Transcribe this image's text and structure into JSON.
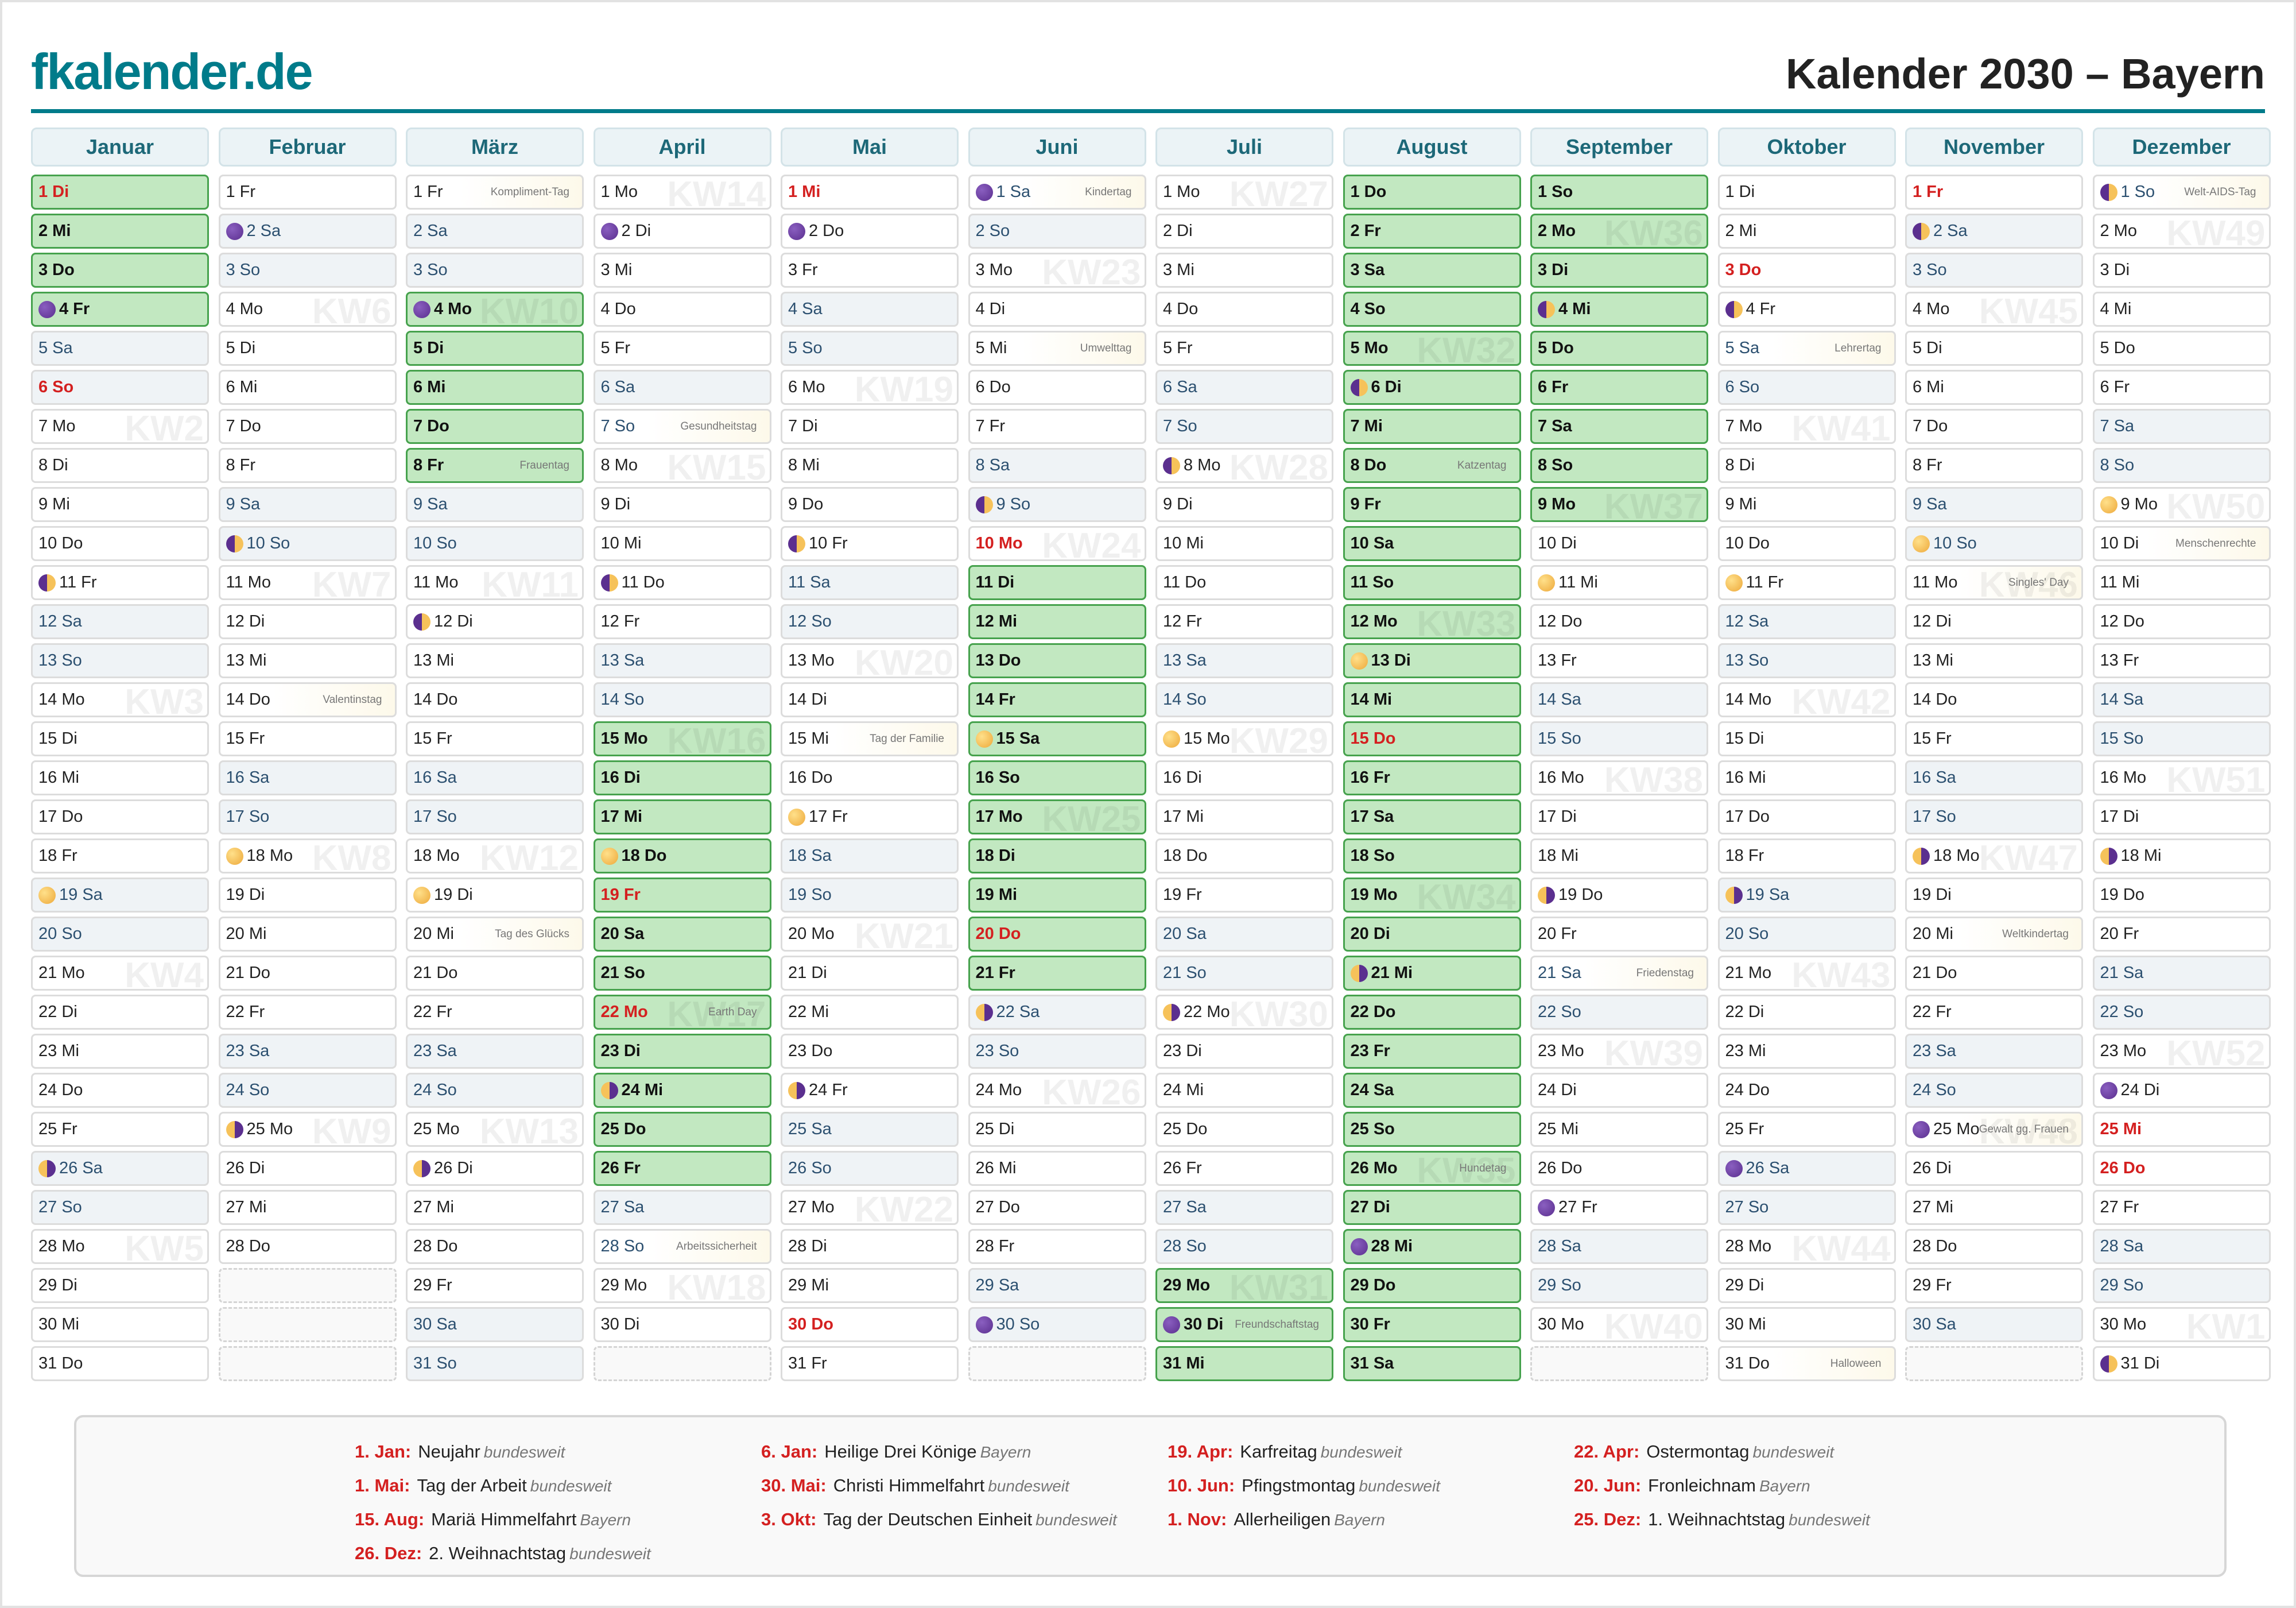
{
  "header": {
    "logo": "fkalender.de",
    "title": "Kalender 2030 – Bayern"
  },
  "colors": {
    "brand": "#007b8a",
    "holiday": "#d42020",
    "vacation": "#c2e8c1",
    "weekend": "#eff3f6"
  },
  "months": [
    {
      "name": "Januar",
      "start": 2,
      "len": 31,
      "holidays": [
        1,
        6
      ],
      "vacation": [
        1,
        2,
        3,
        4
      ],
      "moons": {
        "4": "new",
        "11": "first",
        "19": "full",
        "26": "last"
      },
      "events": {},
      "kw": {
        "7": "KW2",
        "14": "KW3",
        "21": "KW4",
        "28": "KW5"
      }
    },
    {
      "name": "Februar",
      "start": 5,
      "len": 28,
      "holidays": [],
      "vacation": [],
      "moons": {
        "2": "new",
        "10": "first",
        "18": "full",
        "25": "last"
      },
      "events": {
        "14": "Valentinstag"
      },
      "kw": {
        "4": "KW6",
        "11": "KW7",
        "18": "KW8",
        "25": "KW9"
      }
    },
    {
      "name": "März",
      "start": 5,
      "len": 31,
      "holidays": [],
      "vacation": [
        4,
        5,
        6,
        7,
        8
      ],
      "moons": {
        "4": "new",
        "12": "first",
        "19": "full",
        "26": "last"
      },
      "events": {
        "1": "Kompliment-Tag",
        "8": "Frauentag",
        "20": "Tag des Glücks"
      },
      "kw": {
        "4": "KW10",
        "11": "KW11",
        "18": "KW12",
        "25": "KW13"
      }
    },
    {
      "name": "April",
      "start": 1,
      "len": 30,
      "holidays": [
        19,
        22
      ],
      "vacation": [
        15,
        16,
        17,
        18,
        19,
        20,
        21,
        22,
        23,
        24,
        25,
        26
      ],
      "moons": {
        "2": "new",
        "11": "first",
        "18": "full",
        "24": "last"
      },
      "events": {
        "7": "Gesundheitstag",
        "22": "Earth Day",
        "28": "Arbeitssicherheit"
      },
      "kw": {
        "1": "KW14",
        "8": "KW15",
        "15": "KW16",
        "22": "KW17",
        "29": "KW18"
      }
    },
    {
      "name": "Mai",
      "start": 3,
      "len": 31,
      "holidays": [
        1,
        30
      ],
      "vacation": [],
      "moons": {
        "2": "new",
        "10": "first",
        "17": "full",
        "24": "last"
      },
      "events": {
        "15": "Tag der Familie"
      },
      "kw": {
        "6": "KW19",
        "13": "KW20",
        "20": "KW21",
        "27": "KW22"
      }
    },
    {
      "name": "Juni",
      "start": 6,
      "len": 30,
      "holidays": [
        10,
        20
      ],
      "vacation": [
        11,
        12,
        13,
        14,
        15,
        16,
        17,
        18,
        19,
        20,
        21
      ],
      "moons": {
        "1": "new",
        "9": "first",
        "15": "full",
        "22": "last",
        "30": "new"
      },
      "events": {
        "1": "Kindertag",
        "5": "Umwelttag"
      },
      "kw": {
        "3": "KW23",
        "10": "KW24",
        "17": "KW25",
        "24": "KW26"
      }
    },
    {
      "name": "Juli",
      "start": 1,
      "len": 31,
      "holidays": [],
      "vacation": [
        29,
        30,
        31
      ],
      "moons": {
        "8": "first",
        "15": "full",
        "22": "last",
        "30": "new"
      },
      "events": {
        "30": "Freundschaftstag"
      },
      "kw": {
        "1": "KW27",
        "8": "KW28",
        "15": "KW29",
        "22": "KW30",
        "29": "KW31"
      }
    },
    {
      "name": "August",
      "start": 4,
      "len": 31,
      "holidays": [
        15
      ],
      "vacation": [
        1,
        2,
        3,
        4,
        5,
        6,
        7,
        8,
        9,
        10,
        11,
        12,
        13,
        14,
        15,
        16,
        17,
        18,
        19,
        20,
        21,
        22,
        23,
        24,
        25,
        26,
        27,
        28,
        29,
        30,
        31
      ],
      "moons": {
        "6": "first",
        "13": "full",
        "21": "last",
        "28": "new"
      },
      "events": {
        "8": "Katzentag",
        "26": "Hundetag"
      },
      "kw": {
        "5": "KW32",
        "12": "KW33",
        "19": "KW34",
        "26": "KW35"
      }
    },
    {
      "name": "September",
      "start": 0,
      "len": 30,
      "holidays": [],
      "vacation": [
        1,
        2,
        3,
        4,
        5,
        6,
        7,
        8,
        9
      ],
      "moons": {
        "4": "first",
        "11": "full",
        "19": "last",
        "27": "new"
      },
      "events": {
        "21": "Friedenstag"
      },
      "kw": {
        "2": "KW36",
        "9": "KW37",
        "16": "KW38",
        "23": "KW39",
        "30": "KW40"
      }
    },
    {
      "name": "Oktober",
      "start": 2,
      "len": 31,
      "holidays": [
        3
      ],
      "vacation": [],
      "moons": {
        "4": "first",
        "11": "full",
        "19": "last",
        "26": "new"
      },
      "events": {
        "5": "Lehrertag",
        "31": "Halloween"
      },
      "kw": {
        "7": "KW41",
        "14": "KW42",
        "21": "KW43",
        "28": "KW44"
      }
    },
    {
      "name": "November",
      "start": 5,
      "len": 30,
      "holidays": [
        1
      ],
      "vacation": [],
      "moons": {
        "2": "first",
        "10": "full",
        "18": "last",
        "25": "new"
      },
      "events": {
        "11": "Singles' Day",
        "20": "Weltkindertag",
        "25": "Gewalt gg. Frauen"
      },
      "kw": {
        "4": "KW45",
        "11": "KW46",
        "18": "KW47",
        "25": "KW48"
      }
    },
    {
      "name": "Dezember",
      "start": 0,
      "len": 31,
      "holidays": [
        25,
        26
      ],
      "vacation": [],
      "moons": {
        "1": "first",
        "9": "full",
        "18": "last",
        "24": "new",
        "31": "first"
      },
      "events": {
        "1": "Welt-AIDS-Tag",
        "10": "Menschenrechte"
      },
      "kw": {
        "2": "KW49",
        "9": "KW50",
        "16": "KW51",
        "23": "KW52",
        "30": "KW1"
      }
    }
  ],
  "weekdays": [
    "So",
    "Mo",
    "Di",
    "Mi",
    "Do",
    "Fr",
    "Sa"
  ],
  "legend": [
    {
      "date": "1. Jan:",
      "name": "Neujahr",
      "scope": "bundesweit"
    },
    {
      "date": "6. Jan:",
      "name": "Heilige Drei Könige",
      "scope": "Bayern"
    },
    {
      "date": "19. Apr:",
      "name": "Karfreitag",
      "scope": "bundesweit"
    },
    {
      "date": "22. Apr:",
      "name": "Ostermontag",
      "scope": "bundesweit"
    },
    {
      "date": "1. Mai:",
      "name": "Tag der Arbeit",
      "scope": "bundesweit"
    },
    {
      "date": "30. Mai:",
      "name": "Christi Himmelfahrt",
      "scope": "bundesweit"
    },
    {
      "date": "10. Jun:",
      "name": "Pfingstmontag",
      "scope": "bundesweit"
    },
    {
      "date": "20. Jun:",
      "name": "Fronleichnam",
      "scope": "Bayern"
    },
    {
      "date": "15. Aug:",
      "name": "Mariä Himmelfahrt",
      "scope": "Bayern"
    },
    {
      "date": "3. Okt:",
      "name": "Tag der Deutschen Einheit",
      "scope": "bundesweit"
    },
    {
      "date": "1. Nov:",
      "name": "Allerheiligen",
      "scope": "Bayern"
    },
    {
      "date": "25. Dez:",
      "name": "1. Weihnachtstag",
      "scope": "bundesweit"
    },
    {
      "date": "26. Dez:",
      "name": "2. Weihnachtstag",
      "scope": "bundesweit"
    }
  ]
}
